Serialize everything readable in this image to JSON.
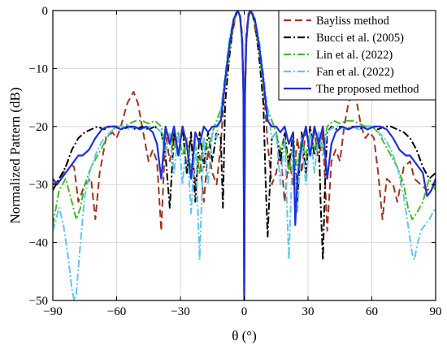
{
  "chart_data": {
    "type": "line",
    "title": "",
    "xlabel": "θ (°)",
    "ylabel": "Normalized Pattern (dB)",
    "xlim": [
      -90,
      90
    ],
    "ylim": [
      -50,
      0
    ],
    "xticks": [
      -90,
      -60,
      -30,
      0,
      30,
      60,
      90
    ],
    "yticks": [
      0,
      -10,
      -20,
      -30,
      -40,
      -50
    ],
    "grid": true,
    "legend_position": "top-right",
    "series": [
      {
        "name": "Bayliss method",
        "color": "#a0341e",
        "dash": "dashed",
        "x": [
          -90,
          -86,
          -83,
          -80,
          -78,
          -75,
          -72,
          -70,
          -68,
          -65,
          -62,
          -60,
          -58,
          -55,
          -52,
          -50,
          -48,
          -45,
          -43,
          -41,
          -39,
          -37,
          -35,
          -33,
          -31,
          -29,
          -27,
          -25,
          -23,
          -21,
          -19,
          -17,
          -15,
          -13,
          -11,
          -9,
          -7,
          -5,
          -4,
          -3,
          -2,
          -1,
          -0.4,
          0,
          0.4,
          1,
          2,
          3,
          4,
          5,
          7,
          9,
          11,
          13,
          15,
          17,
          19,
          21,
          23,
          25,
          27,
          29,
          31,
          33,
          35,
          37,
          39,
          41,
          43,
          45,
          47,
          49,
          51,
          53,
          55,
          57,
          59,
          61,
          63,
          65,
          67,
          70,
          72,
          75,
          78,
          80,
          83,
          86,
          90
        ],
        "y": [
          -30,
          -29,
          -26,
          -27,
          -33,
          -30,
          -29,
          -36,
          -28,
          -22,
          -21,
          -22,
          -20,
          -16,
          -14,
          -16,
          -20,
          -26,
          -24,
          -26,
          -38,
          -21,
          -26,
          -21,
          -25,
          -20,
          -28,
          -22,
          -30,
          -25,
          -33,
          -24,
          -28,
          -30,
          -23,
          -12,
          -6,
          -3,
          -0.5,
          0,
          -0.5,
          -4,
          -12,
          -50,
          -12,
          -4,
          -0.5,
          0,
          -0.5,
          -3,
          -6,
          -12,
          -23,
          -30,
          -28,
          -24,
          -33,
          -25,
          -30,
          -22,
          -28,
          -20,
          -25,
          -21,
          -26,
          -21,
          -38,
          -26,
          -24,
          -26,
          -20,
          -16,
          -14,
          -16,
          -20,
          -22,
          -21,
          -22,
          -28,
          -36,
          -29,
          -30,
          -33,
          -27,
          -26,
          -29,
          -30,
          -31,
          -30
        ]
      },
      {
        "name": "Bucci et al. (2005)",
        "color": "#000000",
        "dash": "dashdot",
        "x": [
          -90,
          -87,
          -84,
          -81,
          -78,
          -75,
          -72,
          -69,
          -66,
          -63,
          -60,
          -57,
          -54,
          -51,
          -48,
          -45,
          -42,
          -39,
          -37,
          -35,
          -33,
          -31,
          -29,
          -27,
          -25,
          -23,
          -21,
          -19,
          -17,
          -15,
          -13,
          -11,
          -10,
          -9,
          -7,
          -5,
          -3,
          -2,
          -1,
          -0.4,
          0,
          0.4,
          1,
          2,
          3,
          5,
          7,
          9,
          10,
          11,
          13,
          15,
          17,
          19,
          21,
          23,
          25,
          27,
          29,
          31,
          33,
          35,
          36,
          37,
          38,
          39,
          41,
          43,
          45,
          48,
          51,
          54,
          57,
          60,
          63,
          66,
          69,
          72,
          75,
          78,
          81,
          84,
          87,
          90
        ],
        "y": [
          -31,
          -29,
          -27,
          -24,
          -22,
          -21,
          -20.5,
          -20,
          -20.5,
          -20,
          -20,
          -20.5,
          -20,
          -20.5,
          -20,
          -20.5,
          -20,
          -21,
          -25,
          -34,
          -21,
          -25,
          -20,
          -28,
          -21,
          -33,
          -21,
          -27,
          -21,
          -26,
          -21,
          -22,
          -34,
          -16,
          -8,
          -2,
          0,
          -1,
          -5,
          -14,
          -50,
          -14,
          -5,
          -1,
          0,
          -2,
          -8,
          -16,
          -29,
          -39,
          -22,
          -21,
          -26,
          -21,
          -27,
          -21,
          -33,
          -21,
          -28,
          -20,
          -25,
          -21,
          -34,
          -43,
          -30,
          -21,
          -20,
          -20.5,
          -20,
          -20.5,
          -20,
          -20.5,
          -20,
          -20,
          -20.5,
          -20,
          -20,
          -20.5,
          -21,
          -22,
          -24,
          -27,
          -29,
          -28
        ]
      },
      {
        "name": "Lin et al. (2022)",
        "color": "#44bb22",
        "dash": "dashdot",
        "x": [
          -90,
          -87,
          -84,
          -81,
          -79,
          -77,
          -75,
          -72,
          -69,
          -66,
          -63,
          -60,
          -57,
          -54,
          -51,
          -48,
          -45,
          -42,
          -39,
          -37,
          -35,
          -33,
          -31,
          -29,
          -27,
          -25,
          -23,
          -21,
          -19,
          -17,
          -15,
          -13,
          -11,
          -9,
          -7,
          -5,
          -3,
          -2,
          -1,
          -0.4,
          0,
          0.4,
          1,
          2,
          3,
          5,
          7,
          9,
          11,
          13,
          15,
          17,
          19,
          21,
          23,
          25,
          27,
          29,
          31,
          33,
          35,
          37,
          39,
          42,
          45,
          48,
          51,
          54,
          57,
          60,
          63,
          66,
          69,
          72,
          75,
          77,
          79,
          81,
          84,
          87,
          90
        ],
        "y": [
          -37,
          -31,
          -29,
          -33,
          -36,
          -34,
          -30,
          -27,
          -25,
          -23,
          -21,
          -20,
          -20,
          -19.5,
          -19,
          -19,
          -19.5,
          -19,
          -20,
          -24,
          -21,
          -24,
          -21,
          -25,
          -22,
          -27,
          -23,
          -28,
          -22,
          -24,
          -21,
          -19,
          -17,
          -13,
          -7,
          -2,
          0,
          -1,
          -6,
          -15,
          -50,
          -15,
          -6,
          -1,
          0,
          -2,
          -7,
          -13,
          -17,
          -19,
          -21,
          -24,
          -22,
          -28,
          -23,
          -27,
          -22,
          -25,
          -21,
          -24,
          -21,
          -24,
          -20,
          -19,
          -19.5,
          -19,
          -19,
          -19.5,
          -20,
          -20,
          -21,
          -23,
          -25,
          -27,
          -30,
          -34,
          -36,
          -35,
          -33,
          -29,
          -31
        ]
      },
      {
        "name": "Fan et al. (2022)",
        "color": "#5fc6f0",
        "dash": "dashdot",
        "x": [
          -90,
          -87,
          -85,
          -83,
          -81,
          -80,
          -79,
          -77,
          -75,
          -72,
          -69,
          -66,
          -63,
          -60,
          -57,
          -54,
          -51,
          -48,
          -45,
          -42,
          -39,
          -37,
          -35,
          -33,
          -31,
          -29,
          -27,
          -25,
          -23,
          -21,
          -19,
          -17,
          -15,
          -13,
          -11,
          -9,
          -7,
          -5,
          -3,
          -2,
          -1,
          -0.4,
          0,
          0.4,
          1,
          2,
          3,
          5,
          7,
          9,
          11,
          13,
          15,
          17,
          19,
          21,
          23,
          25,
          27,
          29,
          31,
          33,
          35,
          37,
          39,
          42,
          45,
          48,
          51,
          54,
          57,
          60,
          63,
          66,
          69,
          72,
          75,
          77,
          79,
          80,
          81,
          83,
          85,
          87,
          90
        ],
        "y": [
          -38,
          -34,
          -37,
          -42,
          -48,
          -50,
          -49,
          -40,
          -32,
          -27,
          -24,
          -22,
          -21,
          -20,
          -20,
          -20.5,
          -20,
          -20.5,
          -20,
          -20,
          -21,
          -25,
          -21,
          -28,
          -21,
          -30,
          -22,
          -35,
          -22,
          -43,
          -22,
          -30,
          -21,
          -22,
          -17,
          -11,
          -5,
          -1.5,
          0,
          -1,
          -5,
          -14,
          -50,
          -14,
          -5,
          -1,
          0,
          -1.5,
          -5,
          -11,
          -17,
          -22,
          -21,
          -30,
          -22,
          -43,
          -22,
          -35,
          -22,
          -30,
          -21,
          -28,
          -21,
          -25,
          -21,
          -20,
          -20,
          -20.5,
          -20,
          -20.5,
          -20,
          -20,
          -21,
          -22,
          -24,
          -27,
          -32,
          -37,
          -42,
          -43,
          -41,
          -38,
          -37,
          -36,
          -34
        ]
      },
      {
        "name": "The proposed method",
        "color": "#1f2fd4",
        "dash": "solid",
        "x": [
          -90,
          -88,
          -86,
          -84,
          -82,
          -80,
          -78,
          -76,
          -73,
          -70,
          -67,
          -64,
          -61,
          -58,
          -55,
          -52,
          -49,
          -46,
          -43,
          -41,
          -39,
          -37,
          -35,
          -33,
          -31,
          -29,
          -27,
          -25,
          -23,
          -21,
          -19,
          -17,
          -15,
          -13,
          -11,
          -9,
          -7,
          -5,
          -3,
          -2,
          -1,
          -0.4,
          0,
          0.4,
          1,
          2,
          3,
          5,
          7,
          9,
          11,
          13,
          15,
          17,
          19,
          21,
          23,
          24,
          25,
          27,
          29,
          31,
          33,
          35,
          37,
          39,
          41,
          43,
          46,
          49,
          52,
          55,
          58,
          61,
          64,
          67,
          70,
          73,
          76,
          78,
          80,
          82,
          84,
          86,
          88,
          90
        ],
        "y": [
          -29,
          -30,
          -29,
          -28,
          -27,
          -26,
          -25,
          -25,
          -24,
          -22,
          -20.5,
          -20,
          -20,
          -20.5,
          -20,
          -20,
          -20.5,
          -20,
          -21,
          -23,
          -29,
          -20,
          -23,
          -20,
          -25,
          -20,
          -23,
          -29,
          -21,
          -23,
          -20,
          -21,
          -20,
          -20,
          -19,
          -12,
          -6,
          -1.5,
          0,
          -1,
          -5,
          -14,
          -50,
          -14,
          -5,
          -1,
          0,
          -1.5,
          -6,
          -12,
          -19,
          -20,
          -20,
          -21,
          -20,
          -23,
          -21,
          -37,
          -29,
          -23,
          -20,
          -25,
          -20,
          -23,
          -20,
          -29,
          -23,
          -21,
          -20,
          -20.5,
          -20,
          -20,
          -20.5,
          -20,
          -20,
          -20.5,
          -22,
          -24,
          -25,
          -25,
          -26,
          -27,
          -28,
          -32,
          -31,
          -29
        ]
      }
    ]
  }
}
